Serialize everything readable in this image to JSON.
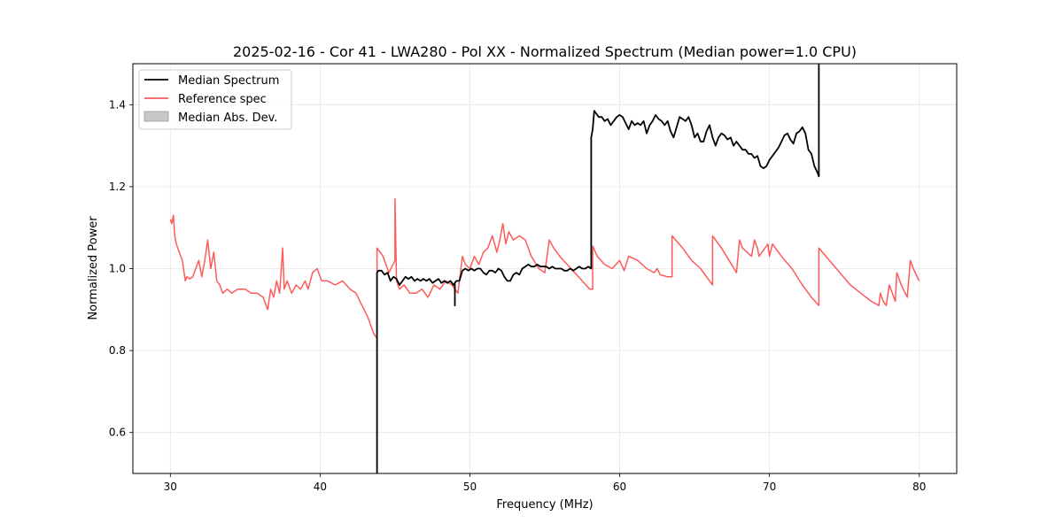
{
  "chart_data": {
    "type": "line",
    "title": "2025-02-16 - Cor 41 - LWA280 - Pol XX - Normalized Spectrum (Median power=1.0 CPU)",
    "xlabel": "Frequency (MHz)",
    "ylabel": "Normalized Power",
    "xlim": [
      27.5,
      82.5
    ],
    "ylim": [
      0.5,
      1.5
    ],
    "xticks": [
      30,
      40,
      50,
      60,
      70,
      80
    ],
    "xtick_labels": [
      "30",
      "40",
      "50",
      "60",
      "70",
      "80"
    ],
    "yticks": [
      0.6,
      0.8,
      1.0,
      1.2,
      1.4
    ],
    "ytick_labels": [
      "0.6",
      "0.8",
      "1.0",
      "1.2",
      "1.4"
    ],
    "grid": true,
    "legend_position": "top-left",
    "legend": [
      {
        "label": "Median Spectrum",
        "kind": "line",
        "color": "#000000"
      },
      {
        "label": "Reference spec",
        "kind": "line",
        "color": "#ff5a5a"
      },
      {
        "label": "Median Abs. Dev.",
        "kind": "patch",
        "color": "#c8c8c8"
      }
    ],
    "series": [
      {
        "name": "Reference spec",
        "color": "#ff5a5a",
        "x": [
          30.0,
          30.1,
          30.2,
          30.3,
          30.4,
          30.6,
          30.8,
          31.0,
          31.1,
          31.3,
          31.5,
          31.7,
          31.9,
          32.1,
          32.3,
          32.5,
          32.7,
          32.9,
          33.1,
          33.3,
          33.5,
          33.8,
          34.1,
          34.5,
          35.0,
          35.4,
          35.8,
          36.2,
          36.5,
          36.7,
          36.9,
          37.1,
          37.3,
          37.5,
          37.6,
          37.8,
          38.1,
          38.4,
          38.7,
          39.0,
          39.2,
          39.5,
          39.8,
          40.1,
          40.5,
          41.0,
          41.5,
          42.0,
          42.4,
          42.8,
          43.2,
          43.6,
          43.8,
          43.8,
          44.2,
          44.6,
          45.0,
          45.0,
          45.1,
          45.3,
          45.6,
          46.0,
          46.4,
          46.8,
          47.2,
          47.6,
          48.0,
          48.4,
          48.8,
          49.2,
          49.5,
          49.7,
          50.0,
          50.3,
          50.6,
          50.9,
          51.2,
          51.5,
          51.8,
          52.0,
          52.2,
          52.4,
          52.6,
          52.9,
          53.3,
          53.7,
          54.1,
          54.6,
          55.0,
          55.3,
          55.6,
          56.0,
          56.5,
          57.0,
          57.5,
          58.0,
          58.2,
          58.2,
          58.5,
          59.0,
          59.5,
          60.0,
          60.3,
          60.6,
          61.2,
          61.8,
          62.3,
          62.5,
          62.7,
          63.2,
          63.5,
          63.5,
          64.2,
          64.8,
          65.4,
          66.0,
          66.2,
          66.2,
          66.8,
          67.3,
          67.8,
          68.0,
          68.2,
          68.8,
          69.0,
          69.2,
          69.3,
          69.9,
          70.0,
          70.2,
          70.8,
          71.5,
          72.2,
          72.8,
          73.3,
          73.3,
          74.0,
          74.7,
          75.4,
          76.1,
          76.8,
          77.3,
          77.4,
          77.6,
          77.8,
          78.0,
          78.2,
          78.4,
          78.5,
          78.8,
          79.2,
          79.4,
          79.6,
          80.0
        ],
        "y": [
          1.12,
          1.11,
          1.13,
          1.08,
          1.06,
          1.04,
          1.02,
          0.97,
          0.98,
          0.975,
          0.98,
          1.0,
          1.02,
          0.98,
          1.02,
          1.07,
          1.0,
          1.04,
          0.97,
          0.96,
          0.94,
          0.95,
          0.94,
          0.95,
          0.95,
          0.94,
          0.94,
          0.93,
          0.9,
          0.95,
          0.93,
          0.97,
          0.94,
          1.05,
          0.95,
          0.97,
          0.94,
          0.96,
          0.95,
          0.97,
          0.95,
          0.99,
          1.0,
          0.97,
          0.97,
          0.96,
          0.97,
          0.95,
          0.94,
          0.91,
          0.88,
          0.84,
          0.83,
          1.05,
          1.03,
          0.99,
          1.02,
          1.17,
          0.97,
          0.95,
          0.96,
          0.94,
          0.94,
          0.95,
          0.93,
          0.96,
          0.95,
          0.97,
          0.96,
          0.94,
          1.03,
          1.01,
          1.0,
          1.03,
          1.01,
          1.04,
          1.05,
          1.08,
          1.04,
          1.07,
          1.11,
          1.06,
          1.09,
          1.07,
          1.08,
          1.07,
          1.03,
          1.0,
          0.99,
          1.07,
          1.05,
          1.03,
          1.01,
          0.99,
          0.97,
          0.95,
          0.95,
          1.055,
          1.03,
          1.01,
          1.0,
          1.02,
          0.995,
          1.03,
          1.02,
          1.0,
          0.99,
          1.0,
          0.985,
          0.98,
          0.98,
          1.08,
          1.05,
          1.02,
          1.0,
          0.97,
          0.96,
          1.08,
          1.05,
          1.02,
          0.99,
          1.07,
          1.05,
          1.03,
          1.07,
          1.05,
          1.03,
          1.06,
          1.03,
          1.06,
          1.03,
          1.0,
          0.96,
          0.93,
          0.91,
          1.05,
          1.02,
          0.99,
          0.96,
          0.94,
          0.92,
          0.91,
          0.94,
          0.92,
          0.91,
          0.96,
          0.94,
          0.92,
          0.99,
          0.96,
          0.93,
          1.02,
          1.0,
          0.97
        ]
      },
      {
        "name": "Median Spectrum",
        "color": "#000000",
        "x": [
          43.8,
          43.8,
          43.8,
          43.9,
          44.1,
          44.3,
          44.5,
          44.7,
          44.9,
          45.1,
          45.3,
          45.5,
          45.7,
          45.9,
          46.1,
          46.3,
          46.5,
          46.7,
          46.9,
          47.1,
          47.3,
          47.5,
          47.7,
          47.9,
          48.1,
          48.3,
          48.5,
          48.7,
          48.9,
          49.0,
          49.0,
          49.0,
          49.0,
          49.1,
          49.3,
          49.5,
          49.7,
          49.9,
          50.1,
          50.3,
          50.5,
          50.7,
          50.9,
          51.1,
          51.3,
          51.5,
          51.7,
          51.9,
          52.1,
          52.3,
          52.5,
          52.7,
          52.9,
          53.1,
          53.3,
          53.5,
          53.7,
          53.9,
          54.1,
          54.3,
          54.5,
          54.7,
          54.9,
          55.1,
          55.3,
          55.5,
          55.7,
          55.9,
          56.1,
          56.3,
          56.5,
          56.7,
          56.9,
          57.1,
          57.3,
          57.5,
          57.7,
          57.9,
          58.1,
          58.1,
          58.2,
          58.3,
          58.4,
          58.6,
          58.8,
          59.0,
          59.2,
          59.4,
          59.6,
          59.8,
          60.0,
          60.2,
          60.4,
          60.6,
          60.8,
          61.0,
          61.2,
          61.4,
          61.6,
          61.8,
          62.0,
          62.2,
          62.4,
          62.6,
          62.8,
          63.0,
          63.2,
          63.4,
          63.6,
          63.8,
          64.0,
          64.2,
          64.4,
          64.6,
          64.8,
          65.0,
          65.2,
          65.4,
          65.6,
          65.8,
          66.0,
          66.2,
          66.4,
          66.6,
          66.8,
          67.0,
          67.2,
          67.4,
          67.6,
          67.8,
          68.0,
          68.2,
          68.4,
          68.6,
          68.8,
          69.0,
          69.2,
          69.4,
          69.6,
          69.8,
          70.0,
          70.2,
          70.4,
          70.6,
          70.8,
          71.0,
          71.2,
          71.4,
          71.6,
          71.8,
          72.0,
          72.2,
          72.4,
          72.6,
          72.8,
          73.0,
          73.2,
          73.3,
          73.3
        ],
        "y": [
          0.5,
          0.83,
          0.99,
          0.995,
          0.995,
          0.985,
          0.99,
          0.97,
          0.98,
          0.975,
          0.96,
          0.97,
          0.98,
          0.975,
          0.98,
          0.97,
          0.975,
          0.97,
          0.975,
          0.97,
          0.975,
          0.965,
          0.97,
          0.975,
          0.965,
          0.97,
          0.965,
          0.97,
          0.96,
          0.965,
          0.91,
          0.965,
          0.965,
          0.97,
          0.97,
          0.995,
          1.0,
          0.995,
          1.0,
          0.995,
          1.0,
          1.0,
          0.99,
          0.985,
          0.995,
          0.995,
          0.99,
          1.0,
          0.995,
          0.98,
          0.97,
          0.97,
          0.985,
          0.99,
          0.985,
          1.0,
          1.005,
          1.01,
          1.005,
          1.005,
          1.01,
          1.005,
          1.005,
          1.005,
          1.0,
          1.005,
          1.0,
          1.0,
          1.0,
          0.995,
          0.995,
          1.0,
          0.995,
          1.0,
          1.005,
          1.0,
          1.0,
          1.005,
          1.0,
          1.32,
          1.34,
          1.385,
          1.38,
          1.37,
          1.37,
          1.36,
          1.365,
          1.35,
          1.36,
          1.37,
          1.375,
          1.37,
          1.355,
          1.34,
          1.36,
          1.35,
          1.355,
          1.35,
          1.36,
          1.33,
          1.35,
          1.36,
          1.375,
          1.365,
          1.36,
          1.35,
          1.36,
          1.335,
          1.32,
          1.345,
          1.37,
          1.365,
          1.36,
          1.37,
          1.35,
          1.32,
          1.33,
          1.31,
          1.31,
          1.335,
          1.35,
          1.32,
          1.3,
          1.32,
          1.33,
          1.325,
          1.315,
          1.32,
          1.3,
          1.31,
          1.3,
          1.29,
          1.29,
          1.28,
          1.28,
          1.27,
          1.275,
          1.25,
          1.245,
          1.25,
          1.265,
          1.275,
          1.285,
          1.295,
          1.31,
          1.325,
          1.33,
          1.315,
          1.305,
          1.33,
          1.335,
          1.345,
          1.33,
          1.29,
          1.28,
          1.25,
          1.235,
          1.225,
          1.5
        ]
      }
    ]
  }
}
